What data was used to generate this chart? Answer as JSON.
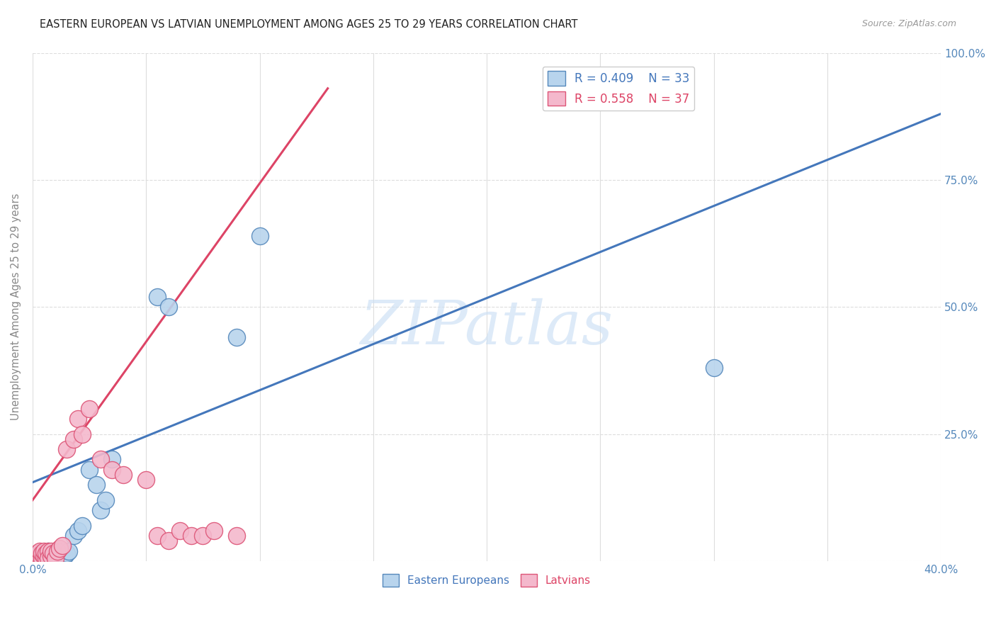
{
  "title": "EASTERN EUROPEAN VS LATVIAN UNEMPLOYMENT AMONG AGES 25 TO 29 YEARS CORRELATION CHART",
  "source": "Source: ZipAtlas.com",
  "ylabel": "Unemployment Among Ages 25 to 29 years",
  "xlim": [
    0,
    0.4
  ],
  "ylim": [
    0,
    1.0
  ],
  "xticks": [
    0.0,
    0.05,
    0.1,
    0.15,
    0.2,
    0.25,
    0.3,
    0.35,
    0.4
  ],
  "yticks": [
    0.0,
    0.25,
    0.5,
    0.75,
    1.0
  ],
  "blue_color": "#b8d4ed",
  "pink_color": "#f4b8cc",
  "blue_edge_color": "#5588bb",
  "pink_edge_color": "#dd5577",
  "blue_line_color": "#4477bb",
  "pink_line_color": "#dd4466",
  "grid_color": "#dddddd",
  "watermark": "ZIPatlas",
  "legend_r_blue": "R = 0.409",
  "legend_n_blue": "N = 33",
  "legend_r_pink": "R = 0.558",
  "legend_n_pink": "N = 37",
  "blue_scatter_x": [
    0.001,
    0.002,
    0.003,
    0.003,
    0.004,
    0.005,
    0.005,
    0.006,
    0.007,
    0.007,
    0.008,
    0.009,
    0.01,
    0.01,
    0.011,
    0.012,
    0.013,
    0.014,
    0.015,
    0.016,
    0.018,
    0.02,
    0.022,
    0.025,
    0.028,
    0.03,
    0.032,
    0.035,
    0.055,
    0.06,
    0.09,
    0.1,
    0.3
  ],
  "blue_scatter_y": [
    0.005,
    0.01,
    0.005,
    0.015,
    0.01,
    0.005,
    0.015,
    0.01,
    0.005,
    0.02,
    0.01,
    0.015,
    0.005,
    0.02,
    0.015,
    0.01,
    0.02,
    0.01,
    0.015,
    0.02,
    0.05,
    0.06,
    0.07,
    0.18,
    0.15,
    0.1,
    0.12,
    0.2,
    0.52,
    0.5,
    0.44,
    0.64,
    0.38
  ],
  "pink_scatter_x": [
    0.001,
    0.001,
    0.002,
    0.002,
    0.003,
    0.003,
    0.004,
    0.004,
    0.005,
    0.005,
    0.006,
    0.006,
    0.007,
    0.007,
    0.008,
    0.008,
    0.009,
    0.01,
    0.011,
    0.012,
    0.013,
    0.015,
    0.018,
    0.02,
    0.022,
    0.025,
    0.03,
    0.035,
    0.04,
    0.05,
    0.055,
    0.06,
    0.065,
    0.07,
    0.075,
    0.08,
    0.09
  ],
  "pink_scatter_y": [
    0.005,
    0.01,
    0.005,
    0.015,
    0.01,
    0.02,
    0.005,
    0.015,
    0.01,
    0.02,
    0.005,
    0.015,
    0.02,
    0.005,
    0.01,
    0.02,
    0.015,
    0.005,
    0.02,
    0.025,
    0.03,
    0.22,
    0.24,
    0.28,
    0.25,
    0.3,
    0.2,
    0.18,
    0.17,
    0.16,
    0.05,
    0.04,
    0.06,
    0.05,
    0.05,
    0.06,
    0.05
  ],
  "blue_line_x": [
    0.0,
    0.4
  ],
  "blue_line_y": [
    0.155,
    0.88
  ],
  "pink_line_x": [
    0.0,
    0.13
  ],
  "pink_line_y": [
    0.12,
    0.93
  ]
}
